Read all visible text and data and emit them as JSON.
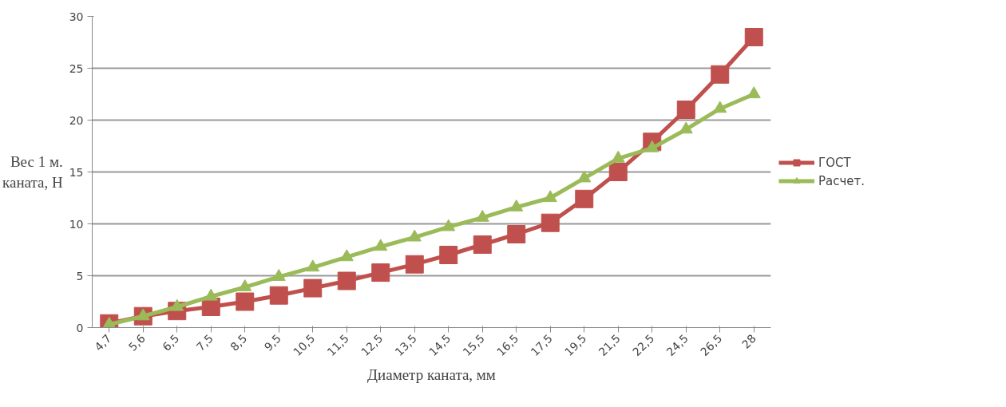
{
  "chart_data": {
    "type": "line",
    "xlabel": "Диаметр каната, мм",
    "ylabel": "Вес 1 м.\nканата, Н",
    "categories": [
      "4,7",
      "5,6",
      "6,5",
      "7,5",
      "8,5",
      "9,5",
      "10,5",
      "11,5",
      "12,5",
      "13,5",
      "14,5",
      "15,5",
      "16,5",
      "17,5",
      "19,5",
      "21,5",
      "22,5",
      "24,5",
      "26,5",
      "28"
    ],
    "series": [
      {
        "name": "ГОСТ",
        "color": "#c0504d",
        "marker": "square",
        "values": [
          0.4,
          1.1,
          1.6,
          2.0,
          2.5,
          3.1,
          3.8,
          4.5,
          5.3,
          6.1,
          7.0,
          8.0,
          9.0,
          10.1,
          12.4,
          15.0,
          17.9,
          21.0,
          24.4,
          28.0
        ]
      },
      {
        "name": "Расчет.",
        "color": "#9bbb59",
        "marker": "triangle",
        "values": [
          0.3,
          1.1,
          2.0,
          3.0,
          3.9,
          4.9,
          5.8,
          6.8,
          7.8,
          8.7,
          9.7,
          10.6,
          11.6,
          12.5,
          14.4,
          16.3,
          17.3,
          19.1,
          21.1,
          22.5
        ]
      }
    ],
    "ylim": [
      0,
      30
    ],
    "yticks": [
      0,
      5,
      10,
      15,
      20,
      25,
      30
    ],
    "grid": "y",
    "legend": "right"
  }
}
